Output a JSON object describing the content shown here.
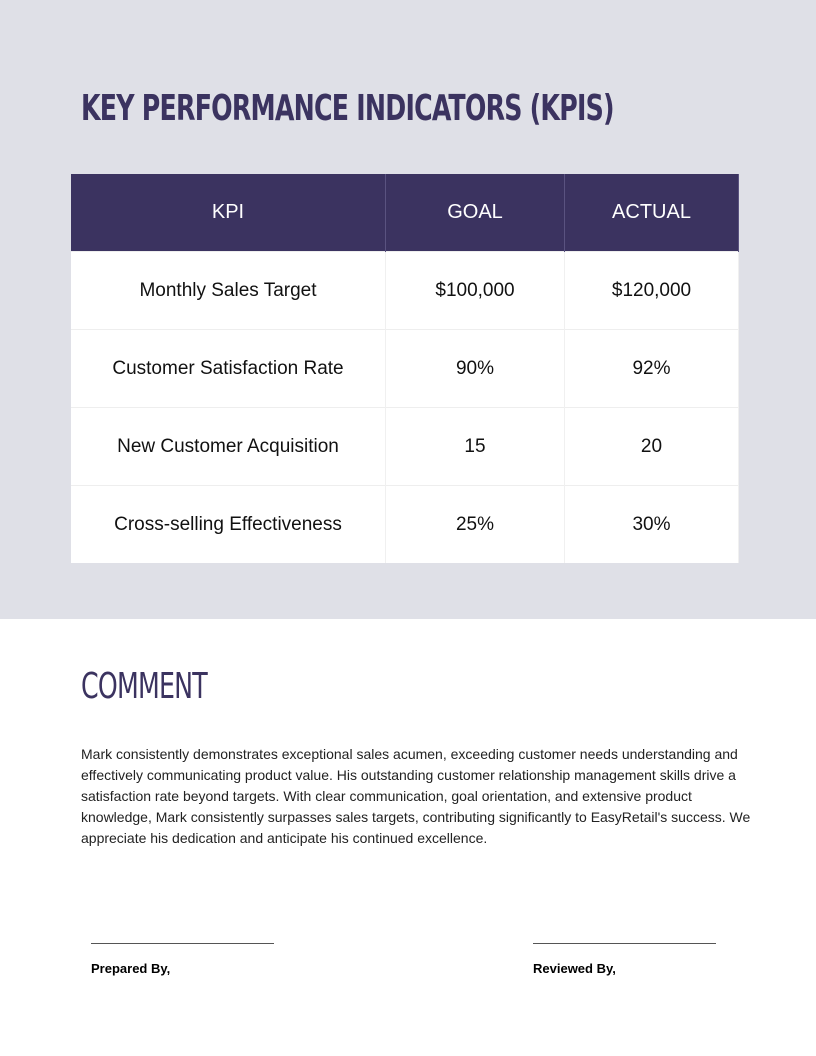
{
  "kpi_section": {
    "title": "KEY PERFORMANCE INDICATORS (KPIS)",
    "table": {
      "headers": [
        "KPI",
        "GOAL",
        "ACTUAL"
      ],
      "rows": [
        [
          "Monthly Sales Target",
          "$100,000",
          "$120,000"
        ],
        [
          "Customer Satisfaction Rate",
          "90%",
          "92%"
        ],
        [
          "New Customer Acquisition",
          "15",
          "20"
        ],
        [
          "Cross-selling Effectiveness",
          "25%",
          "30%"
        ]
      ]
    }
  },
  "comment_section": {
    "title": "COMMENT",
    "body": "Mark consistently demonstrates exceptional sales acumen, exceeding customer needs understanding and effectively communicating product value. His outstanding customer relationship management skills drive a satisfaction rate beyond targets. With clear communication, goal orientation, and extensive product knowledge, Mark consistently surpasses sales targets, contributing significantly to EasyRetail's success. We appreciate his dedication and anticipate his continued excellence."
  },
  "signatures": [
    "Prepared By,",
    "Reviewed By,"
  ]
}
